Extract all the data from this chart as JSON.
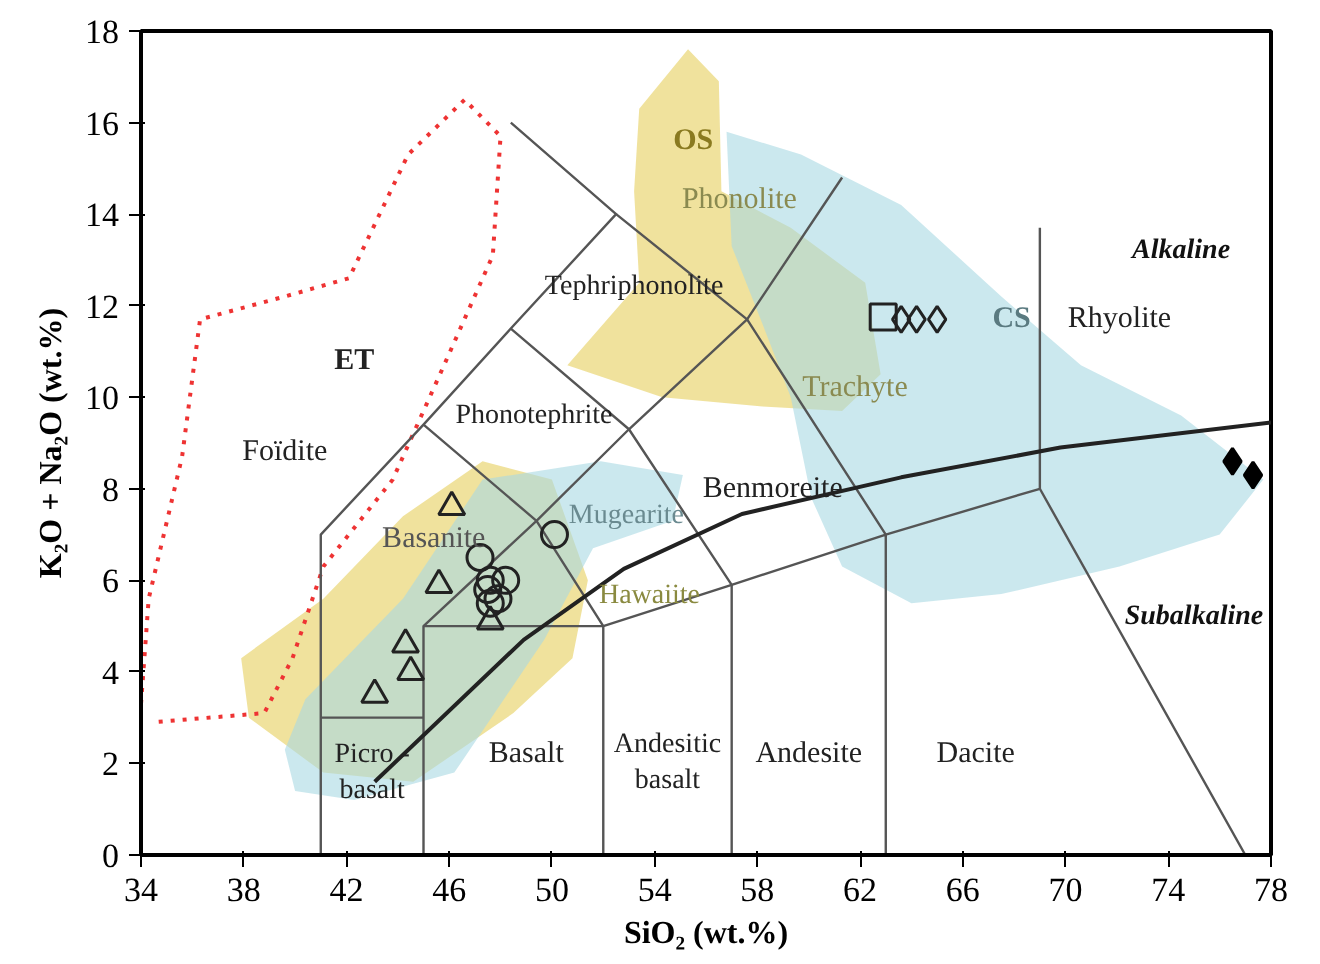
{
  "chart_data": {
    "type": "scatter",
    "xlabel": "SiO₂ (wt.%)",
    "ylabel": "K₂O + Na₂O (wt.%)",
    "xlim": [
      34,
      78
    ],
    "ylim": [
      0,
      18
    ],
    "xticks": [
      34,
      38,
      42,
      46,
      50,
      54,
      58,
      62,
      66,
      70,
      74,
      78
    ],
    "yticks": [
      0,
      2,
      4,
      6,
      8,
      10,
      12,
      14,
      16,
      18
    ],
    "grid": false,
    "series": [
      {
        "type": "area",
        "color": "#e6cf5c",
        "x": [
          53.4,
          55.3,
          56.5,
          56.6,
          59.3,
          62.2,
          62.8,
          61.3,
          58.2,
          54.3,
          50.6,
          52.0,
          53.4,
          53.2
        ],
        "values": [
          16.3,
          17.6,
          16.9,
          14.5,
          13.7,
          12.5,
          10.5,
          9.7,
          9.8,
          10.0,
          10.7,
          11.6,
          12.5,
          14.5
        ]
      },
      {
        "type": "area",
        "color": "#e6cf5c",
        "x": [
          37.9,
          41.1,
          44.2,
          47.3,
          50.0,
          51.4,
          50.8,
          48.5,
          44.6,
          41.1,
          38.2
        ],
        "values": [
          4.3,
          5.6,
          7.4,
          8.6,
          8.2,
          6.0,
          4.3,
          3.1,
          1.6,
          1.8,
          3.0
        ]
      },
      {
        "type": "area",
        "color": "#a9d9e2",
        "x": [
          56.8,
          59.7,
          63.6,
          67.5,
          70.6,
          74.5,
          77.7,
          76.0,
          72.1,
          67.5,
          64.0,
          61.3,
          60.1,
          59.3,
          58.2,
          57.0
        ],
        "values": [
          15.8,
          15.3,
          14.2,
          12.2,
          10.7,
          9.6,
          8.2,
          7.0,
          6.3,
          5.7,
          5.5,
          6.3,
          7.8,
          10.0,
          11.6,
          13.3
        ]
      },
      {
        "type": "area",
        "color": "#a9d9e2",
        "x": [
          39.6,
          40.4,
          44.2,
          47.3,
          51.9,
          55.1,
          54.7,
          51.6,
          49.7,
          46.2,
          42.3,
          40.0
        ],
        "values": [
          2.3,
          3.4,
          5.6,
          8.2,
          8.6,
          8.3,
          7.3,
          6.7,
          4.7,
          1.8,
          1.2,
          1.4
        ]
      },
      {
        "type": "line",
        "color": "#ee3333",
        "line_style": "dotted",
        "x": [
          34.0,
          34.3,
          35.6,
          36.3,
          39.6,
          42.1,
          44.4,
          46.6,
          48.0,
          47.7,
          45.8,
          43.8,
          41.1,
          39.9,
          38.8,
          34.5
        ],
        "values": [
          3.3,
          5.6,
          8.7,
          11.7,
          12.2,
          12.6,
          15.3,
          16.5,
          15.7,
          13.1,
          10.7,
          8.2,
          6.3,
          4.3,
          3.1,
          2.9
        ]
      },
      {
        "type": "line",
        "color": "#555555",
        "x": [
          41,
          41,
          45,
          48.4,
          52.5,
          48.4
        ],
        "values": [
          0,
          7,
          9.4,
          11.5,
          14,
          16
        ]
      },
      {
        "type": "line",
        "color": "#555555",
        "x": [
          41,
          45
        ],
        "values": [
          3,
          3
        ]
      },
      {
        "type": "line",
        "color": "#555555",
        "x": [
          45,
          45,
          49.4,
          53,
          57.6,
          61.3
        ],
        "values": [
          0,
          5,
          7.3,
          9.3,
          11.7,
          14.8
        ]
      },
      {
        "type": "line",
        "color": "#555555",
        "x": [
          52.5,
          57.6,
          63,
          69,
          77
        ],
        "values": [
          14,
          11.7,
          7,
          8,
          0
        ]
      },
      {
        "type": "line",
        "color": "#555555",
        "x": [
          45,
          49.4,
          52,
          45
        ],
        "values": [
          9.4,
          7.3,
          5,
          5
        ]
      },
      {
        "type": "line",
        "color": "#555555",
        "x": [
          48.4,
          53,
          57,
          52,
          52
        ],
        "values": [
          11.5,
          9.3,
          5.9,
          5,
          0
        ]
      },
      {
        "type": "line",
        "color": "#555555",
        "x": [
          57,
          57,
          63,
          63
        ],
        "values": [
          0,
          5.9,
          7,
          0
        ]
      },
      {
        "type": "line",
        "color": "#555555",
        "x": [
          69,
          69
        ],
        "values": [
          8,
          13.7
        ]
      },
      {
        "type": "line",
        "color": "#222222",
        "x": [
          43.1,
          48.9,
          52.8,
          57.4,
          63.6,
          69.8,
          78
        ],
        "values": [
          1.6,
          4.7,
          6.25,
          7.45,
          8.25,
          8.9,
          9.45
        ]
      },
      {
        "marker": "triangle",
        "color": "#222222",
        "x": [
          46.1,
          45.6,
          44.3,
          44.5,
          43.1,
          47.6
        ],
        "values": [
          7.6,
          5.9,
          4.6,
          4.0,
          3.5,
          5.1
        ]
      },
      {
        "marker": "circle",
        "color": "#222222",
        "x": [
          50.1,
          47.2,
          47.6,
          48.2,
          47.5,
          47.6,
          47.9
        ],
        "values": [
          7.0,
          6.5,
          6.0,
          6.0,
          5.8,
          5.5,
          5.6
        ]
      },
      {
        "marker": "square",
        "color": "#222222",
        "x": [
          62.9
        ],
        "values": [
          11.75
        ]
      },
      {
        "marker": "diamond",
        "color": "#222222",
        "x": [
          63.6,
          64.2,
          65.0
        ],
        "values": [
          11.7,
          11.7,
          11.7
        ]
      },
      {
        "marker": "diamond",
        "color": "#000000",
        "x": [
          76.5,
          77.3
        ],
        "values": [
          8.6,
          8.3
        ]
      }
    ],
    "annotations": [
      "Foïdite",
      "ET",
      "OS",
      "Phonolite",
      "Tephriphonolite",
      "Phonotephrite",
      "Benmoreite",
      "Mugearite",
      "Basanite",
      "Hawaiite",
      "Basalt",
      "Andesitic\nbasalt",
      "Andesite",
      "Dacite",
      "Picro -\nbasalt",
      "Trachyte",
      "CS",
      "Rhyolite",
      "Alkaline",
      "Subalkaline"
    ]
  }
}
